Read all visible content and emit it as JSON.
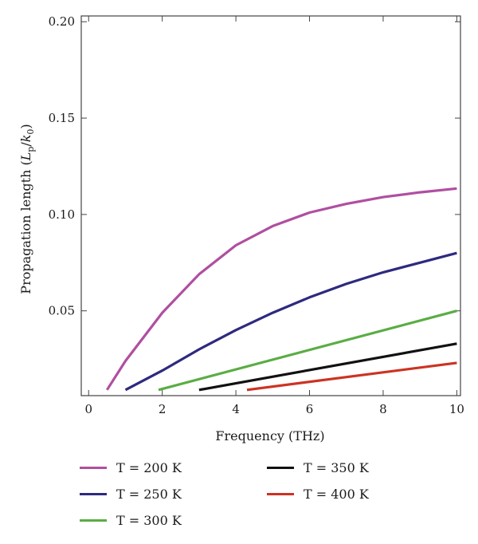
{
  "chart_data": {
    "type": "line",
    "xlabel": "Frequency (THz)",
    "ylabel": {
      "main": "Propagation length (",
      "L": "L",
      "p": "p",
      "slash": "/",
      "k": "k",
      "zero": "0",
      "close": ")"
    },
    "xlim": [
      -0.2,
      10.1
    ],
    "ylim": [
      0.006,
      0.203
    ],
    "xticks": [
      "0",
      "2",
      "4",
      "6",
      "8",
      "10"
    ],
    "xtick_values": [
      0,
      2,
      4,
      6,
      8,
      10
    ],
    "yticks": [
      "0.05",
      "0.10",
      "0.15",
      "0.20"
    ],
    "ytick_values": [
      0.05,
      0.1,
      0.15,
      0.2
    ],
    "legend_position": "bottom",
    "series": [
      {
        "name": "T = 200 K",
        "color": "#b04fa0",
        "x": [
          0.5,
          1,
          2,
          3,
          4,
          5,
          6,
          7,
          8,
          9,
          10
        ],
        "y": [
          0.009,
          0.024,
          0.049,
          0.069,
          0.084,
          0.094,
          0.101,
          0.1055,
          0.109,
          0.1115,
          0.1135
        ]
      },
      {
        "name": "T = 250 K",
        "color": "#2e2a7f",
        "x": [
          1,
          2,
          3,
          4,
          5,
          6,
          7,
          8,
          9,
          10
        ],
        "y": [
          0.009,
          0.019,
          0.03,
          0.04,
          0.049,
          0.057,
          0.064,
          0.07,
          0.075,
          0.08
        ]
      },
      {
        "name": "T = 300 K",
        "color": "#5aad45",
        "x": [
          1.9,
          10
        ],
        "y": [
          0.009,
          0.05
        ]
      },
      {
        "name": "T = 350 K",
        "color": "#111111",
        "x": [
          3,
          10
        ],
        "y": [
          0.009,
          0.033
        ]
      },
      {
        "name": "T = 400 K",
        "color": "#cc3322",
        "x": [
          4.3,
          10
        ],
        "y": [
          0.009,
          0.023
        ]
      }
    ]
  }
}
